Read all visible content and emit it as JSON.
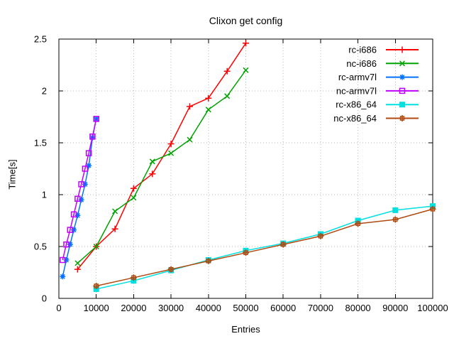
{
  "window": {
    "background": "#ffffff"
  },
  "chart_data": {
    "type": "line",
    "title": "Clixon get config",
    "xlabel": "Entries",
    "ylabel": "Time[s]",
    "xlim": [
      0,
      100000
    ],
    "ylim": [
      0,
      2.5
    ],
    "x_ticks": [
      0,
      10000,
      20000,
      30000,
      40000,
      50000,
      60000,
      70000,
      80000,
      90000,
      100000
    ],
    "x_tick_labels": [
      "0",
      "10000",
      "20000",
      "30000",
      "40000",
      "50000",
      "60000",
      "70000",
      "80000",
      "90000",
      "100000"
    ],
    "y_ticks": [
      0,
      0.5,
      1,
      1.5,
      2,
      2.5
    ],
    "y_tick_labels": [
      "0",
      "0.5",
      "1",
      "1.5",
      "2",
      "2.5"
    ],
    "grid": true,
    "legend_position": "top-right-inside",
    "series": [
      {
        "name": "rc-i686",
        "color": "#ff0000",
        "marker": "plus",
        "x": [
          5000,
          10000,
          15000,
          20000,
          25000,
          30000,
          35000,
          40000,
          45000,
          50000
        ],
        "y": [
          0.28,
          0.5,
          0.67,
          1.06,
          1.2,
          1.49,
          1.85,
          1.93,
          2.19,
          2.46
        ]
      },
      {
        "name": "nc-i686",
        "color": "#00a400",
        "marker": "cross",
        "x": [
          5000,
          10000,
          15000,
          20000,
          25000,
          30000,
          35000,
          40000,
          45000,
          50000
        ],
        "y": [
          0.34,
          0.5,
          0.84,
          0.97,
          1.32,
          1.4,
          1.53,
          1.82,
          1.95,
          2.2
        ]
      },
      {
        "name": "rc-armv7l",
        "color": "#0072ff",
        "marker": "asterisk",
        "x": [
          1000,
          2000,
          3000,
          4000,
          5000,
          6000,
          7000,
          8000,
          9000,
          10000
        ],
        "y": [
          0.21,
          0.37,
          0.52,
          0.66,
          0.8,
          0.95,
          1.1,
          1.28,
          1.55,
          1.73
        ]
      },
      {
        "name": "nc-armv7l",
        "color": "#c000ff",
        "marker": "open-square",
        "x": [
          1000,
          2000,
          3000,
          4000,
          5000,
          6000,
          7000,
          8000,
          9000,
          10000
        ],
        "y": [
          0.37,
          0.52,
          0.66,
          0.81,
          0.96,
          1.1,
          1.25,
          1.4,
          1.56,
          1.73
        ]
      },
      {
        "name": "rc-x86_64",
        "color": "#00e0e0",
        "marker": "filled-square",
        "x": [
          10000,
          20000,
          30000,
          40000,
          50000,
          60000,
          70000,
          80000,
          90000,
          100000
        ],
        "y": [
          0.09,
          0.17,
          0.27,
          0.37,
          0.46,
          0.53,
          0.62,
          0.75,
          0.85,
          0.89
        ]
      },
      {
        "name": "nc-x86_64",
        "color": "#b04a10",
        "marker": "square-plus",
        "x": [
          10000,
          20000,
          30000,
          40000,
          50000,
          60000,
          70000,
          80000,
          90000,
          100000
        ],
        "y": [
          0.12,
          0.2,
          0.28,
          0.36,
          0.44,
          0.52,
          0.6,
          0.72,
          0.76,
          0.86
        ]
      }
    ]
  },
  "style": {
    "text_color": "#000000",
    "grid_color": "#b9b9b9",
    "border_color": "#000000"
  }
}
